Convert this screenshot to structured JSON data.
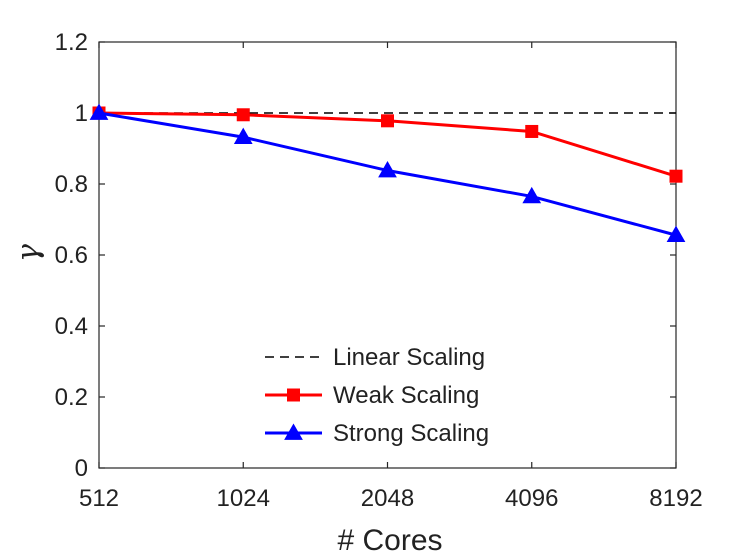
{
  "chart_data": {
    "type": "line",
    "categories": [
      "512",
      "1024",
      "2048",
      "4096",
      "8192"
    ],
    "xlabel": "# Cores",
    "ylabel": "γ",
    "ylim": [
      0,
      1.2
    ],
    "yticks": [
      "0",
      "0.2",
      "0.4",
      "0.6",
      "0.8",
      "1",
      "1.2"
    ],
    "ytick_values": [
      0,
      0.2,
      0.4,
      0.6,
      0.8,
      1.0,
      1.2
    ],
    "grid": false,
    "legend_position": "bottom-center",
    "series": [
      {
        "name": "Linear Scaling",
        "style": "dashed",
        "color": "#000000",
        "marker": "none",
        "values": [
          1.0,
          1.0,
          1.0,
          1.0,
          1.0
        ]
      },
      {
        "name": "Weak Scaling",
        "style": "solid",
        "color": "#ff0000",
        "marker": "square",
        "values": [
          1.0,
          0.995,
          0.978,
          0.948,
          0.822
        ]
      },
      {
        "name": "Strong Scaling",
        "style": "solid",
        "color": "#0000ff",
        "marker": "triangle",
        "values": [
          1.0,
          0.932,
          0.838,
          0.765,
          0.656
        ]
      }
    ]
  }
}
